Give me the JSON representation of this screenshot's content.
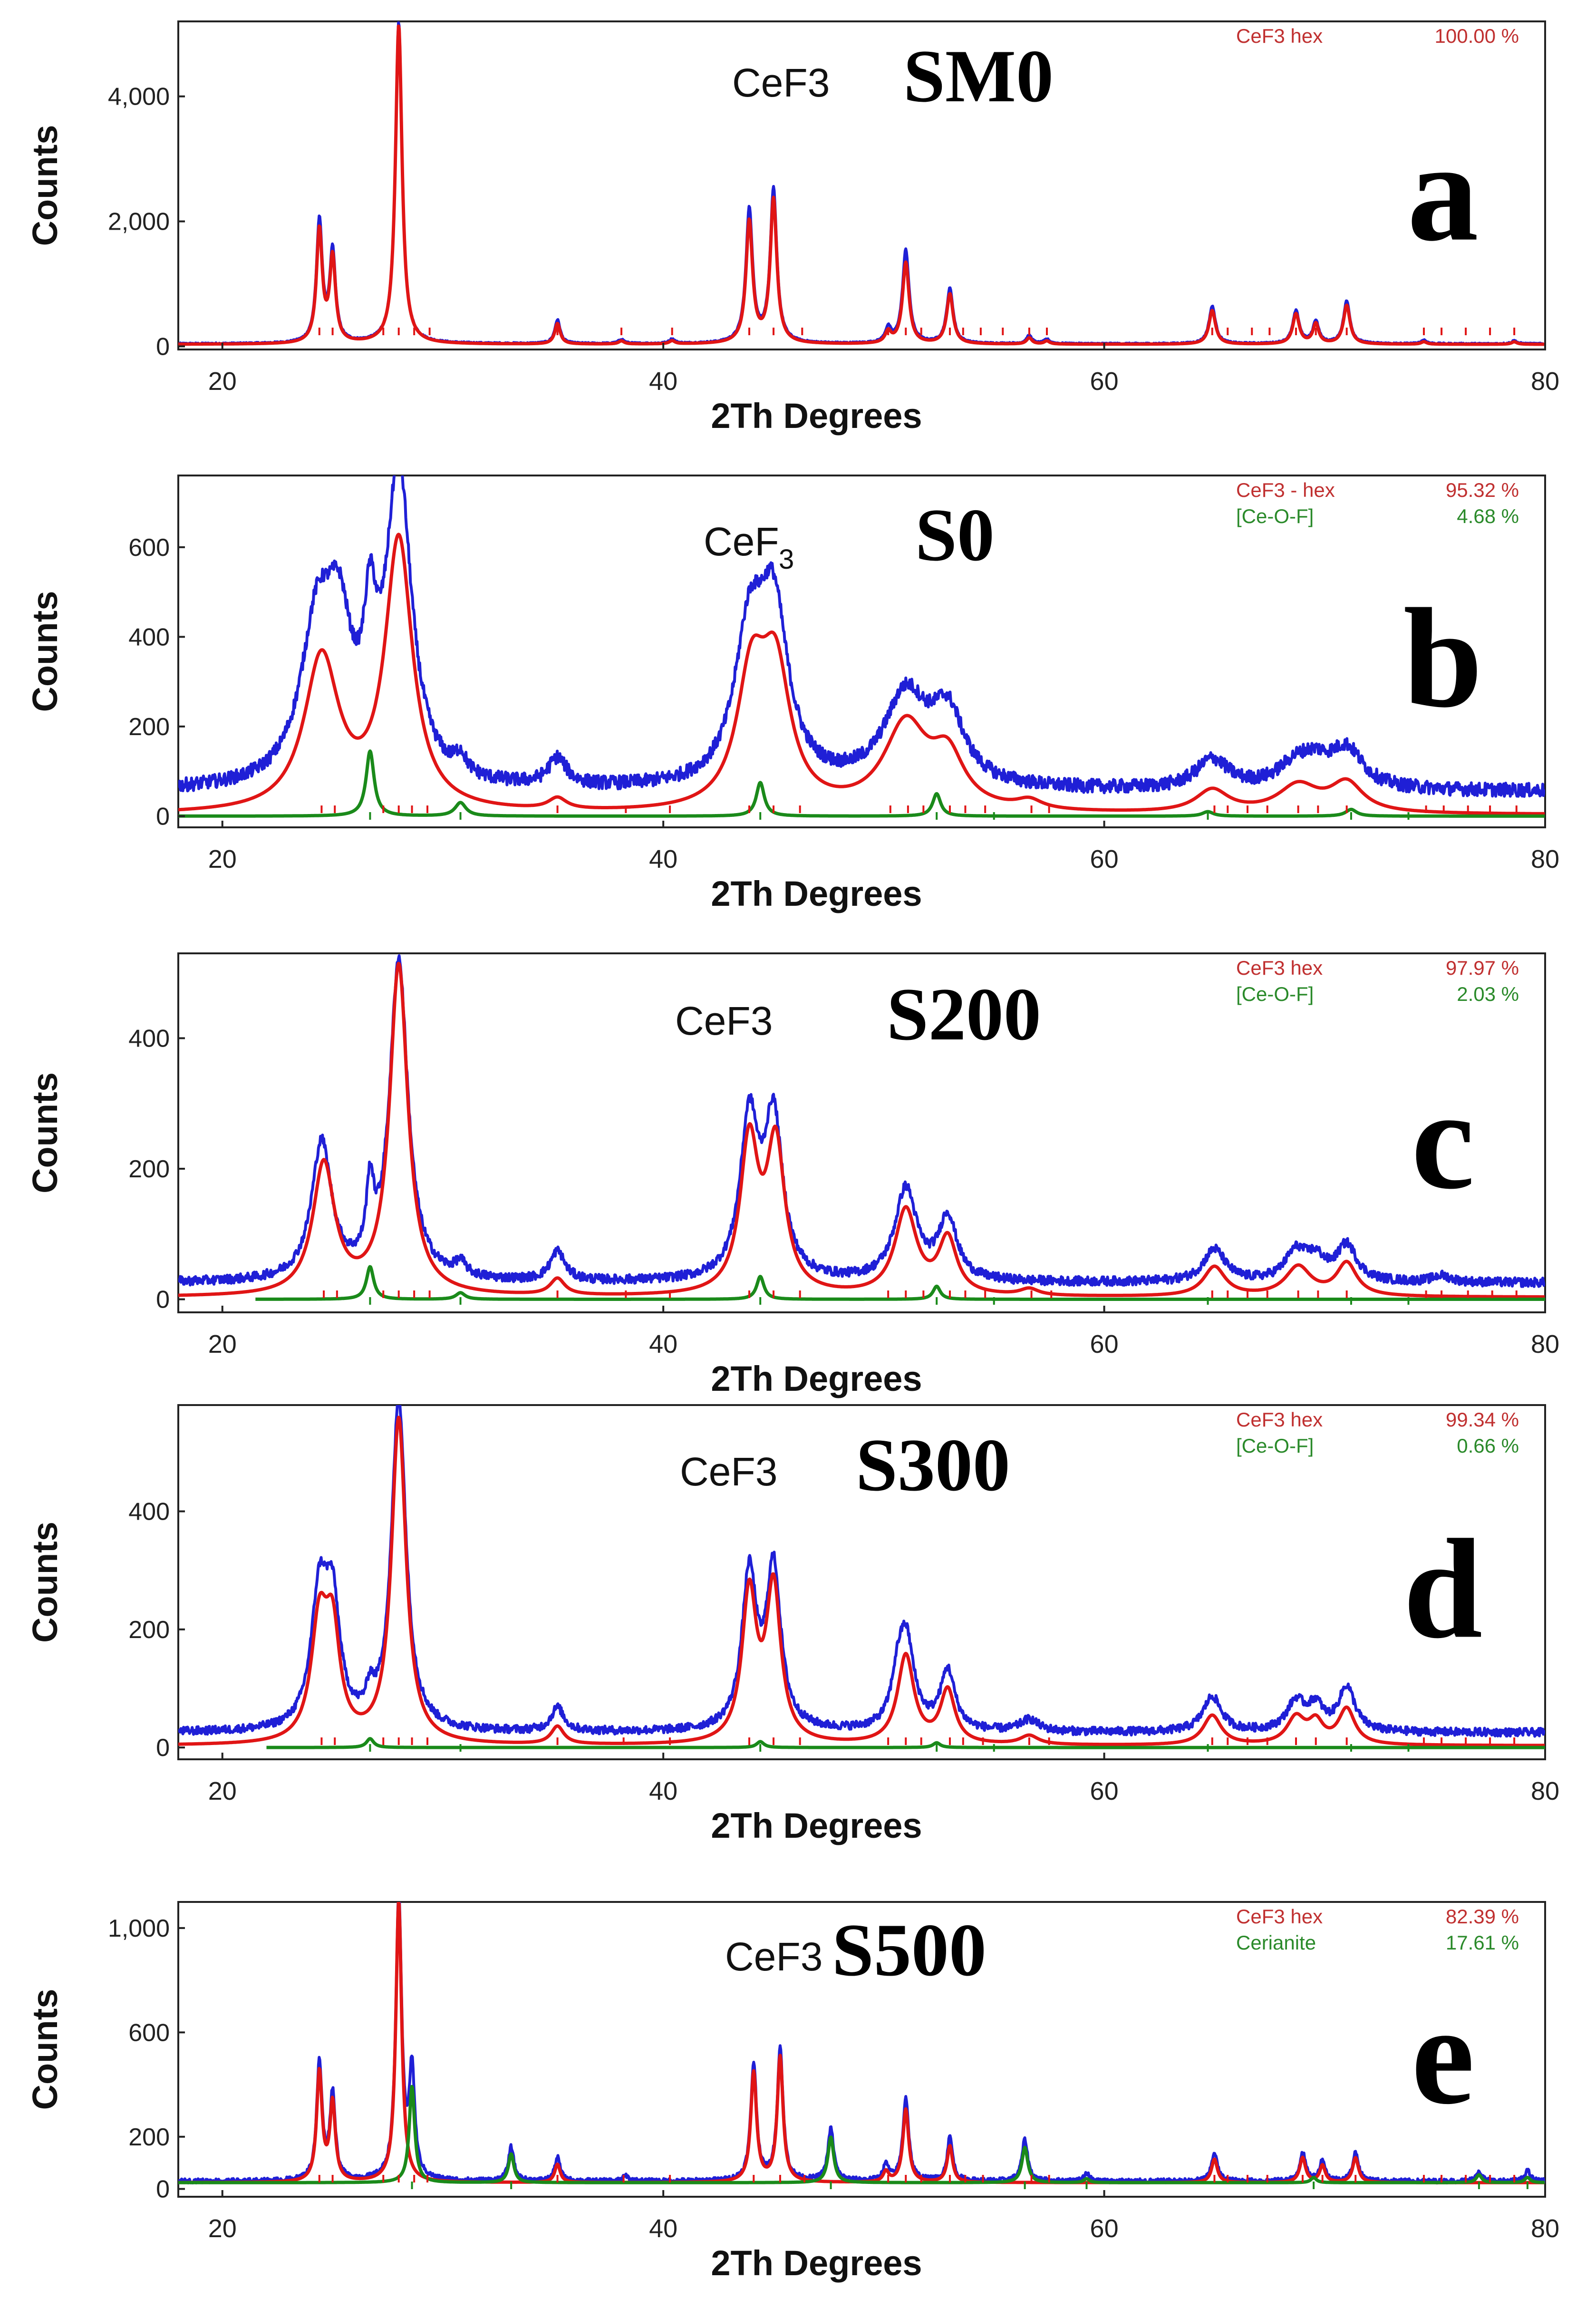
{
  "colors": {
    "observed": "#1f1fd6",
    "phase1": "#e01515",
    "phase2": "#1a8a1a",
    "phase1_text": "#c03030",
    "phase2_text": "#2a8a2a",
    "axis": "#222222"
  },
  "chart_data": [
    {
      "type": "line",
      "panel_letter": "a",
      "sample": "SM0",
      "phase_label": "CeF3",
      "phase_label_sub": "",
      "xlabel": "2Th Degrees",
      "ylabel": "Counts",
      "xlim": [
        18,
        80
      ],
      "ylim": [
        -50,
        5200
      ],
      "xticks": [
        20,
        40,
        60,
        80
      ],
      "yticks": [
        0,
        2000,
        4000
      ],
      "ytick_labels": [
        "0",
        "2,000",
        "4,000"
      ],
      "grid": false,
      "legend_position": "top-right",
      "legend": [
        {
          "name": "CeF3 hex",
          "value": "100.00 %",
          "phase": "phase1"
        }
      ],
      "baseline": 40,
      "peaks_observed": [
        [
          24.4,
          1950,
          0.16
        ],
        [
          25.0,
          1450,
          0.16
        ],
        [
          28.0,
          5150,
          0.18
        ],
        [
          35.2,
          380,
          0.15
        ],
        [
          38.1,
          70,
          0.15
        ],
        [
          40.4,
          70,
          0.15
        ],
        [
          43.9,
          2150,
          0.18
        ],
        [
          45.0,
          2450,
          0.18
        ],
        [
          50.2,
          230,
          0.16
        ],
        [
          51.0,
          1500,
          0.18
        ],
        [
          53.0,
          880,
          0.18
        ],
        [
          56.6,
          130,
          0.15
        ],
        [
          57.4,
          70,
          0.15
        ],
        [
          64.9,
          600,
          0.18
        ],
        [
          68.7,
          520,
          0.18
        ],
        [
          69.6,
          360,
          0.16
        ],
        [
          71.0,
          680,
          0.18
        ],
        [
          74.5,
          60,
          0.15
        ],
        [
          78.6,
          50,
          0.15
        ]
      ],
      "peaks_phase1": [
        [
          24.4,
          1800,
          0.16
        ],
        [
          25.0,
          1350,
          0.16
        ],
        [
          28.0,
          5100,
          0.18
        ],
        [
          35.2,
          330,
          0.15
        ],
        [
          38.1,
          50,
          0.15
        ],
        [
          40.4,
          50,
          0.15
        ],
        [
          43.9,
          1950,
          0.18
        ],
        [
          45.0,
          2300,
          0.18
        ],
        [
          50.2,
          180,
          0.16
        ],
        [
          51.0,
          1300,
          0.18
        ],
        [
          53.0,
          800,
          0.18
        ],
        [
          56.6,
          100,
          0.15
        ],
        [
          57.4,
          50,
          0.15
        ],
        [
          64.9,
          540,
          0.18
        ],
        [
          68.7,
          480,
          0.18
        ],
        [
          69.6,
          320,
          0.16
        ],
        [
          71.0,
          620,
          0.18
        ],
        [
          74.5,
          40,
          0.15
        ],
        [
          78.6,
          40,
          0.15
        ]
      ],
      "peaks_phase2": [],
      "tick_marks_phase1": [
        24.4,
        25.0,
        27.3,
        28.0,
        28.7,
        29.4,
        35.2,
        38.1,
        40.4,
        43.9,
        45.0,
        46.3,
        50.2,
        51.0,
        51.7,
        53.0,
        53.6,
        54.4,
        55.4,
        56.6,
        57.4,
        64.9,
        65.6,
        66.7,
        67.5,
        68.7,
        69.6,
        71.0,
        74.5,
        75.3,
        76.4,
        77.5,
        78.6
      ],
      "tick_marks_phase2": []
    },
    {
      "type": "line",
      "panel_letter": "b",
      "sample": "S0",
      "phase_label": "CeF",
      "phase_label_sub": "3",
      "xlabel": "2Th Degrees",
      "ylabel": "Counts",
      "xlim": [
        18,
        80
      ],
      "ylim": [
        -25,
        760
      ],
      "xticks": [
        20,
        40,
        60,
        80
      ],
      "yticks": [
        0,
        200,
        400,
        600
      ],
      "ytick_labels": [
        "0",
        "200",
        "400",
        "600"
      ],
      "grid": false,
      "legend_position": "top-right",
      "legend": [
        {
          "name": "CeF3 - hex",
          "value": "95.32 %",
          "phase": "phase1"
        },
        {
          "name": "[Ce-O-F]",
          "value": "4.68 %",
          "phase": "phase2"
        }
      ],
      "baseline": 55,
      "peaks_observed": [
        [
          24.3,
          340,
          0.9
        ],
        [
          25.3,
          280,
          0.7
        ],
        [
          26.7,
          260,
          0.35
        ],
        [
          28.0,
          690,
          0.7
        ],
        [
          30.8,
          40,
          0.3
        ],
        [
          35.2,
          60,
          0.5
        ],
        [
          43.9,
          310,
          0.8
        ],
        [
          45.0,
          370,
          0.8
        ],
        [
          51.0,
          200,
          1.2
        ],
        [
          52.9,
          150,
          0.9
        ],
        [
          64.9,
          65,
          0.9
        ],
        [
          68.7,
          50,
          1.0
        ],
        [
          69.6,
          40,
          0.8
        ],
        [
          71.0,
          85,
          0.9
        ]
      ],
      "peaks_phase1": [
        [
          24.5,
          340,
          0.95
        ],
        [
          28.0,
          600,
          0.75
        ],
        [
          35.2,
          25,
          0.5
        ],
        [
          44.0,
          280,
          0.8
        ],
        [
          45.1,
          290,
          0.8
        ],
        [
          51.0,
          190,
          1.2
        ],
        [
          52.9,
          110,
          0.9
        ],
        [
          56.6,
          20,
          0.7
        ],
        [
          64.9,
          50,
          0.9
        ],
        [
          68.8,
          60,
          1.1
        ],
        [
          71.0,
          65,
          0.9
        ]
      ],
      "peaks_phase2": [
        [
          26.7,
          145,
          0.22
        ],
        [
          30.8,
          30,
          0.3
        ],
        [
          44.4,
          75,
          0.22
        ],
        [
          52.4,
          50,
          0.22
        ],
        [
          64.7,
          10,
          0.3
        ],
        [
          71.2,
          15,
          0.3
        ]
      ],
      "tick_marks_phase1": [
        24.5,
        25.1,
        27.3,
        28.0,
        28.6,
        29.3,
        35.2,
        38.3,
        40.3,
        43.9,
        45.0,
        46.2,
        50.3,
        51.1,
        51.8,
        53.0,
        53.7,
        54.6,
        56.7,
        57.5,
        65.0,
        65.6,
        66.5,
        67.4,
        68.8,
        69.7,
        71.0,
        74.6,
        75.4,
        76.5,
        77.5,
        78.7
      ],
      "tick_marks_phase2": [
        26.7,
        30.8,
        44.4,
        52.4,
        55.0,
        64.7,
        71.2,
        73.8
      ],
      "phase2_baseline": 0
    },
    {
      "type": "line",
      "panel_letter": "c",
      "sample": "S200",
      "phase_label": "CeF3",
      "phase_label_sub": "",
      "xlabel": "2Th Degrees",
      "ylabel": "Counts",
      "xlim": [
        18,
        80
      ],
      "ylim": [
        -20,
        530
      ],
      "xticks": [
        20,
        40,
        60,
        80
      ],
      "yticks": [
        0,
        200,
        400
      ],
      "ytick_labels": [
        "0",
        "200",
        "400"
      ],
      "grid": false,
      "legend_position": "top-right",
      "legend": [
        {
          "name": "CeF3 hex",
          "value": "97.97 %",
          "phase": "phase1"
        },
        {
          "name": "[Ce-O-F]",
          "value": "2.03 %",
          "phase": "phase2"
        }
      ],
      "baseline": 25,
      "peaks_observed": [
        [
          24.5,
          210,
          0.55
        ],
        [
          26.7,
          110,
          0.2
        ],
        [
          28.0,
          490,
          0.5
        ],
        [
          30.8,
          20,
          0.3
        ],
        [
          35.2,
          45,
          0.4
        ],
        [
          43.9,
          240,
          0.5
        ],
        [
          45.0,
          240,
          0.5
        ],
        [
          51.0,
          140,
          0.6
        ],
        [
          52.9,
          95,
          0.5
        ],
        [
          65.0,
          50,
          0.6
        ],
        [
          68.7,
          45,
          0.6
        ],
        [
          69.6,
          30,
          0.5
        ],
        [
          71.0,
          55,
          0.55
        ],
        [
          75.3,
          10,
          0.5
        ]
      ],
      "peaks_phase1": [
        [
          24.6,
          200,
          0.6
        ],
        [
          28.0,
          505,
          0.5
        ],
        [
          35.2,
          25,
          0.4
        ],
        [
          43.9,
          230,
          0.5
        ],
        [
          45.1,
          225,
          0.5
        ],
        [
          51.0,
          130,
          0.6
        ],
        [
          52.9,
          85,
          0.5
        ],
        [
          56.6,
          10,
          0.5
        ],
        [
          65.0,
          45,
          0.6
        ],
        [
          68.8,
          45,
          0.7
        ],
        [
          71.0,
          50,
          0.55
        ]
      ],
      "peaks_phase2": [
        [
          26.7,
          50,
          0.2
        ],
        [
          30.8,
          10,
          0.25
        ],
        [
          44.4,
          35,
          0.2
        ],
        [
          52.4,
          20,
          0.2
        ]
      ],
      "tick_marks_phase1": [
        24.6,
        25.2,
        27.3,
        28.0,
        28.7,
        29.4,
        35.2,
        38.3,
        40.3,
        43.9,
        45.0,
        46.2,
        50.2,
        51.0,
        51.8,
        53.0,
        53.7,
        54.6,
        56.7,
        57.6,
        64.9,
        65.6,
        66.5,
        67.4,
        68.8,
        69.7,
        71.0,
        74.6,
        75.3,
        76.5,
        77.6,
        78.7
      ],
      "tick_marks_phase2": [
        26.7,
        30.8,
        44.4,
        52.4,
        55.0,
        64.7,
        71.2,
        73.8
      ],
      "phase2_baseline": 0,
      "phase2_start": 21.5
    },
    {
      "type": "line",
      "panel_letter": "d",
      "sample": "S300",
      "phase_label": "CeF3",
      "phase_label_sub": "",
      "xlabel": "2Th Degrees",
      "ylabel": "Counts",
      "xlim": [
        18,
        80
      ],
      "ylim": [
        -20,
        580
      ],
      "xticks": [
        20,
        40,
        60,
        80
      ],
      "yticks": [
        0,
        200,
        400
      ],
      "ytick_labels": [
        "0",
        "200",
        "400"
      ],
      "grid": false,
      "legend_position": "top-right",
      "legend": [
        {
          "name": "CeF3 hex",
          "value": "99.34 %",
          "phase": "phase1"
        },
        {
          "name": "[Ce-O-F]",
          "value": "0.66 %",
          "phase": "phase2"
        }
      ],
      "baseline": 25,
      "peaks_observed": [
        [
          24.4,
          220,
          0.45
        ],
        [
          25.0,
          190,
          0.4
        ],
        [
          26.7,
          40,
          0.2
        ],
        [
          28.0,
          560,
          0.4
        ],
        [
          35.2,
          40,
          0.35
        ],
        [
          43.9,
          260,
          0.4
        ],
        [
          45.0,
          270,
          0.4
        ],
        [
          50.6,
          50,
          0.3
        ],
        [
          51.0,
          160,
          0.45
        ],
        [
          52.9,
          100,
          0.4
        ],
        [
          56.6,
          20,
          0.5
        ],
        [
          64.9,
          60,
          0.5
        ],
        [
          68.7,
          50,
          0.5
        ],
        [
          69.6,
          40,
          0.4
        ],
        [
          71.0,
          75,
          0.45
        ]
      ],
      "peaks_phase1": [
        [
          24.4,
          195,
          0.45
        ],
        [
          25.0,
          170,
          0.4
        ],
        [
          28.0,
          550,
          0.4
        ],
        [
          35.2,
          30,
          0.35
        ],
        [
          43.9,
          250,
          0.4
        ],
        [
          45.0,
          260,
          0.4
        ],
        [
          51.0,
          150,
          0.45
        ],
        [
          52.9,
          90,
          0.4
        ],
        [
          56.6,
          15,
          0.5
        ],
        [
          64.9,
          50,
          0.5
        ],
        [
          68.7,
          45,
          0.5
        ],
        [
          69.6,
          35,
          0.4
        ],
        [
          71.0,
          60,
          0.45
        ]
      ],
      "peaks_phase2": [
        [
          26.7,
          15,
          0.2
        ],
        [
          44.4,
          10,
          0.2
        ],
        [
          52.4,
          8,
          0.2
        ]
      ],
      "tick_marks_phase1": [
        24.5,
        25.1,
        27.3,
        28.0,
        28.6,
        29.3,
        35.2,
        38.2,
        40.3,
        43.9,
        45.0,
        46.2,
        50.2,
        51.0,
        51.7,
        53.0,
        53.6,
        54.5,
        56.6,
        57.5,
        64.9,
        65.6,
        66.5,
        67.4,
        68.7,
        69.6,
        71.0,
        74.5,
        75.3,
        76.4,
        77.5,
        78.6
      ],
      "tick_marks_phase2": [
        26.7,
        30.8,
        44.4,
        52.4,
        55.0,
        64.7,
        71.2,
        73.8
      ],
      "phase2_baseline": 0,
      "phase2_start": 22.0
    },
    {
      "type": "line",
      "panel_letter": "e",
      "sample": "S500",
      "phase_label": "CeF3",
      "phase_label_sub": "",
      "xlabel": "2Th Degrees",
      "ylabel": "Counts",
      "xlim": [
        18,
        80
      ],
      "ylim": [
        -30,
        1100
      ],
      "xticks": [
        20,
        40,
        60,
        80
      ],
      "yticks": [
        0,
        200,
        600,
        1000
      ],
      "ytick_labels": [
        "0",
        "200",
        "600",
        "1,000"
      ],
      "grid": false,
      "legend_position": "top-right",
      "legend": [
        {
          "name": "CeF3 hex",
          "value": "82.39 %",
          "phase": "phase1"
        },
        {
          "name": "Cerianite",
          "value": "17.61 %",
          "phase": "phase2"
        }
      ],
      "baseline": 30,
      "peaks_observed": [
        [
          24.4,
          450,
          0.15
        ],
        [
          25.0,
          330,
          0.15
        ],
        [
          28.0,
          1090,
          0.16
        ],
        [
          28.6,
          410,
          0.15
        ],
        [
          33.1,
          130,
          0.15
        ],
        [
          35.2,
          90,
          0.15
        ],
        [
          38.3,
          20,
          0.15
        ],
        [
          44.1,
          450,
          0.16
        ],
        [
          45.3,
          510,
          0.16
        ],
        [
          47.6,
          200,
          0.16
        ],
        [
          50.1,
          60,
          0.15
        ],
        [
          51.0,
          320,
          0.16
        ],
        [
          53.0,
          170,
          0.15
        ],
        [
          56.4,
          160,
          0.16
        ],
        [
          59.2,
          30,
          0.15
        ],
        [
          65.0,
          110,
          0.16
        ],
        [
          69.0,
          110,
          0.16
        ],
        [
          69.9,
          80,
          0.15
        ],
        [
          71.4,
          110,
          0.16
        ],
        [
          77.0,
          40,
          0.15
        ],
        [
          79.2,
          40,
          0.15
        ]
      ],
      "peaks_phase1": [
        [
          24.4,
          420,
          0.15
        ],
        [
          25.0,
          300,
          0.15
        ],
        [
          28.0,
          1080,
          0.16
        ],
        [
          35.2,
          70,
          0.15
        ],
        [
          44.1,
          420,
          0.16
        ],
        [
          45.3,
          480,
          0.16
        ],
        [
          50.1,
          40,
          0.15
        ],
        [
          51.0,
          280,
          0.16
        ],
        [
          53.0,
          140,
          0.15
        ],
        [
          65.0,
          90,
          0.16
        ],
        [
          69.0,
          95,
          0.16
        ],
        [
          69.9,
          65,
          0.15
        ],
        [
          71.4,
          95,
          0.16
        ]
      ],
      "peaks_phase2": [
        [
          28.6,
          370,
          0.15
        ],
        [
          33.1,
          110,
          0.15
        ],
        [
          47.6,
          175,
          0.16
        ],
        [
          56.4,
          135,
          0.16
        ],
        [
          59.2,
          15,
          0.15
        ],
        [
          69.5,
          20,
          0.15
        ],
        [
          77.0,
          30,
          0.15
        ],
        [
          79.2,
          20,
          0.15
        ]
      ],
      "tick_marks_phase1": [
        24.4,
        25.0,
        27.3,
        28.0,
        28.7,
        29.3,
        35.2,
        38.2,
        40.3,
        44.1,
        45.3,
        46.4,
        50.2,
        51.0,
        51.7,
        53.0,
        53.7,
        54.5,
        56.7,
        57.5,
        65.0,
        65.6,
        66.5,
        67.4,
        69.0,
        69.9,
        71.4,
        74.5,
        75.3,
        76.4,
        77.5,
        78.6
      ],
      "tick_marks_phase2": [
        28.6,
        33.1,
        47.6,
        56.4,
        59.2,
        69.5,
        77.0,
        79.2
      ]
    }
  ]
}
